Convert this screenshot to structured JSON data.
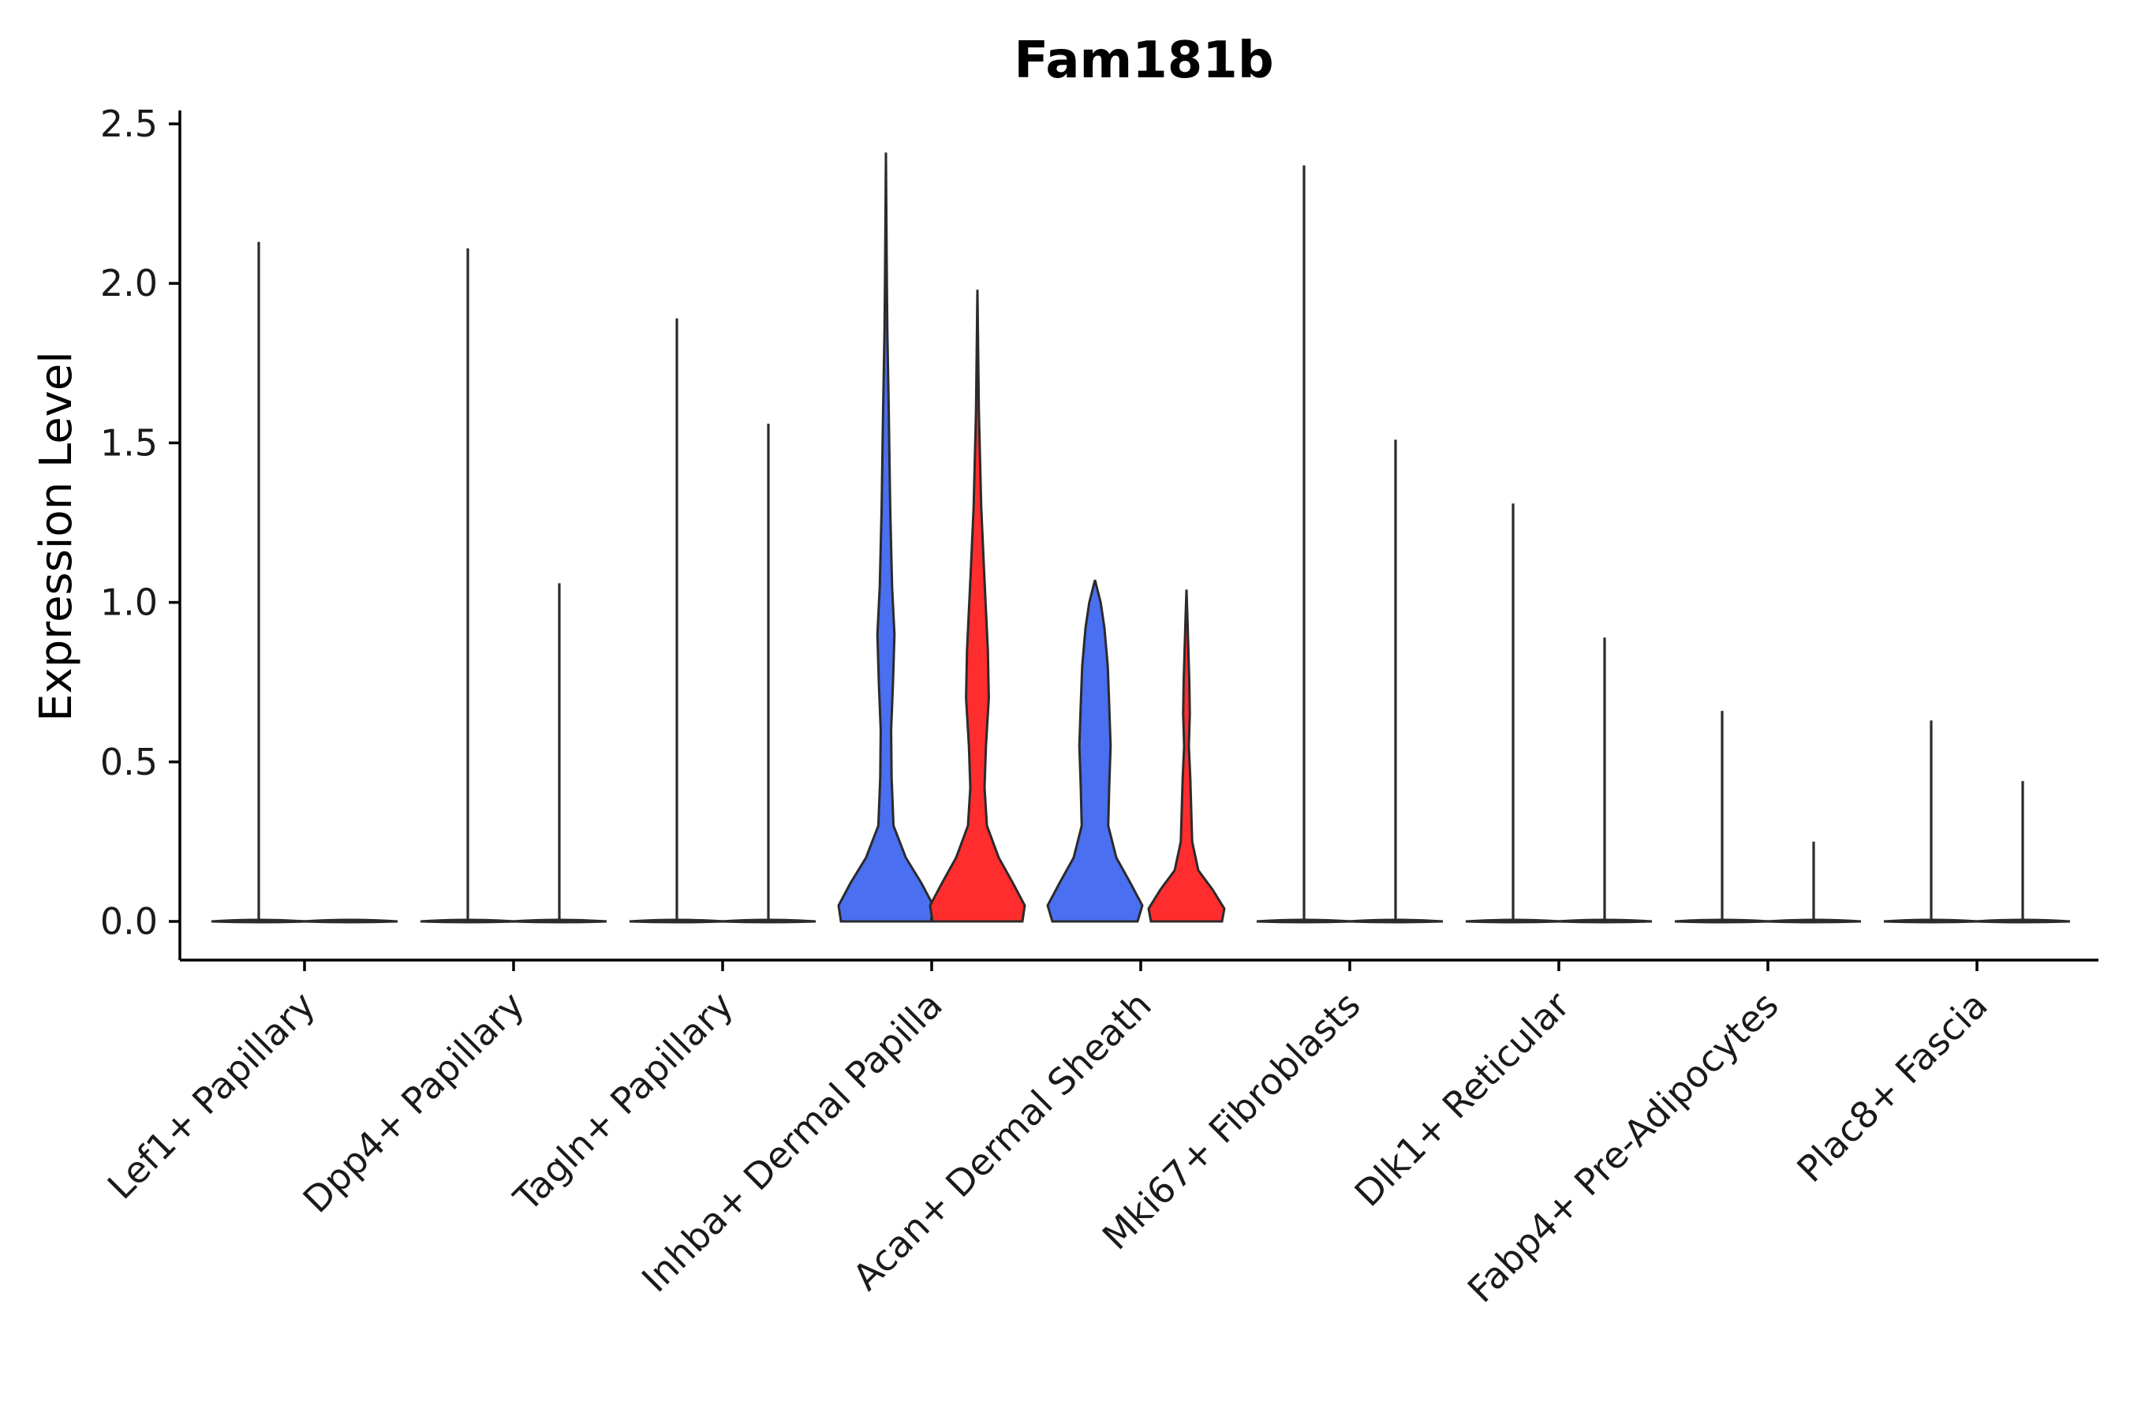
{
  "chart_data": {
    "type": "violin",
    "title": "Fam181b",
    "xlabel": "",
    "ylabel": "Expression Level",
    "ylim": [
      -0.12,
      2.52
    ],
    "yticks": [
      "0.0",
      "0.5",
      "1.0",
      "1.5",
      "2.0",
      "2.5"
    ],
    "ytick_values": [
      0,
      0.5,
      1.0,
      1.5,
      2.0,
      2.5
    ],
    "categories": [
      "Lef1+ Papillary",
      "Dpp4+ Papillary",
      "Tagln+ Papillary",
      "Inhba+ Dermal Papilla",
      "Acan+ Dermal Sheath",
      "Mki67+ Fibroblasts",
      "Dlk1+ Reticular",
      "Fabp4+ Pre-Adipocytes",
      "Plac8+ Fascia"
    ],
    "split_colors": {
      "left": "#4a6ff0",
      "right": "#ff2d2d"
    },
    "series": [
      {
        "name": "left",
        "max_values": [
          2.13,
          2.11,
          1.89,
          2.41,
          1.07,
          2.37,
          1.31,
          0.66,
          0.63
        ]
      },
      {
        "name": "right",
        "max_values": [
          0.0,
          1.06,
          1.56,
          1.98,
          1.04,
          1.51,
          0.89,
          0.25,
          0.44
        ]
      }
    ],
    "legend": "none",
    "grid": false
  }
}
